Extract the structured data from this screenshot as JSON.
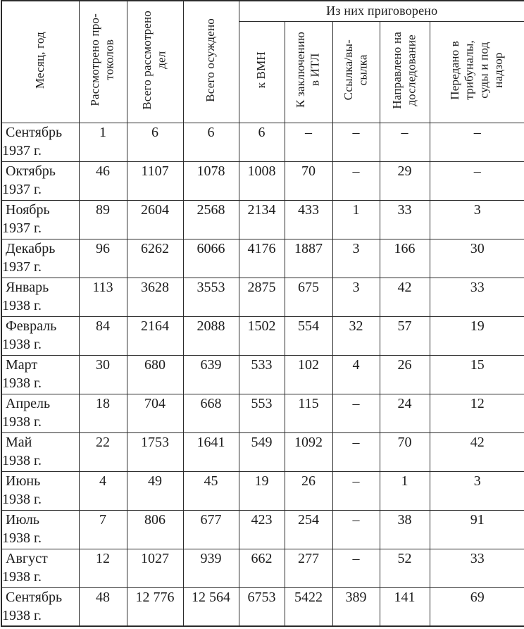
{
  "page": {
    "background": "#ffffff",
    "text_color": "#1c1c1c",
    "border_color": "#2b2b2b"
  },
  "table": {
    "header": {
      "col_month": "Месяц, год",
      "col_protocols": "Рассмотрено про-\nтоколов",
      "col_cases_reviewed": "Всего рассмотрено\nдел",
      "col_total_convicted": "Всего осуждено",
      "group_sentenced": "Из них приговорено",
      "col_vmn": "к ВМН",
      "col_itl": "К заключению\nв ИТЛ",
      "col_exile": "Ссылка/вы-\nсылка",
      "col_reinvestigation": "Направлено на\nдоследование",
      "col_tribunals": "Передано в\nтрибуналы,\nсуды и под\nнадзор"
    },
    "rows": [
      {
        "month": "Сентябрь",
        "year": "1937 г.",
        "values": [
          "1",
          "6",
          "6",
          "6",
          "–",
          "–",
          "–",
          "–"
        ]
      },
      {
        "month": "Октябрь",
        "year": "1937 г.",
        "values": [
          "46",
          "1107",
          "1078",
          "1008",
          "70",
          "–",
          "29",
          "–"
        ]
      },
      {
        "month": "Ноябрь",
        "year": "1937 г.",
        "values": [
          "89",
          "2604",
          "2568",
          "2134",
          "433",
          "1",
          "33",
          "3"
        ]
      },
      {
        "month": "Декабрь",
        "year": "1937 г.",
        "values": [
          "96",
          "6262",
          "6066",
          "4176",
          "1887",
          "3",
          "166",
          "30"
        ]
      },
      {
        "month": "Январь",
        "year": "1938 г.",
        "values": [
          "113",
          "3628",
          "3553",
          "2875",
          "675",
          "3",
          "42",
          "33"
        ]
      },
      {
        "month": "Февраль",
        "year": "1938 г.",
        "values": [
          "84",
          "2164",
          "2088",
          "1502",
          "554",
          "32",
          "57",
          "19"
        ]
      },
      {
        "month": "Март",
        "year": "1938 г.",
        "values": [
          "30",
          "680",
          "639",
          "533",
          "102",
          "4",
          "26",
          "15"
        ]
      },
      {
        "month": "Апрель",
        "year": "1938 г.",
        "values": [
          "18",
          "704",
          "668",
          "553",
          "115",
          "–",
          "24",
          "12"
        ]
      },
      {
        "month": "Май",
        "year": "1938 г.",
        "values": [
          "22",
          "1753",
          "1641",
          "549",
          "1092",
          "–",
          "70",
          "42"
        ]
      },
      {
        "month": "Июнь",
        "year": "1938 г.",
        "values": [
          "4",
          "49",
          "45",
          "19",
          "26",
          "–",
          "1",
          "3"
        ]
      },
      {
        "month": "Июль",
        "year": "1938 г.",
        "values": [
          "7",
          "806",
          "677",
          "423",
          "254",
          "–",
          "38",
          "91"
        ]
      },
      {
        "month": "Август",
        "year": "1938 г.",
        "values": [
          "12",
          "1027",
          "939",
          "662",
          "277",
          "–",
          "52",
          "33"
        ]
      },
      {
        "month": "Сентябрь",
        "year": "1938 г.",
        "values": [
          "48",
          "12 776",
          "12 564",
          "6753",
          "5422",
          "389",
          "141",
          "69"
        ]
      }
    ]
  }
}
